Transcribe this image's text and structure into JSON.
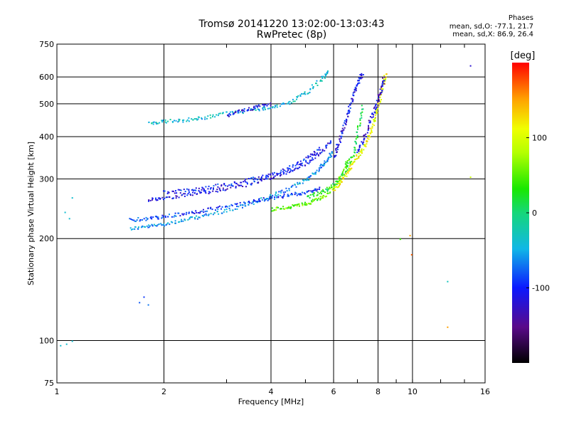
{
  "header": {
    "title": "Tromsø 20141220 13:02:00-13:03:43",
    "subtitle": "RwPretec (8p)"
  },
  "stats": {
    "heading": "Phases",
    "line1": "mean, sd,O: -77.1, 21.7",
    "line2": "mean, sd,X: 86.9, 26.4"
  },
  "colorbar": {
    "unit_label": "[deg]",
    "ticks": [
      100,
      0,
      -100
    ],
    "range": [
      -200,
      200
    ]
  },
  "chart_data": {
    "type": "scatter",
    "xlabel": "Frequency [MHz]",
    "ylabel": "Stationary phase Virtual Height [km]",
    "xscale": "log",
    "yscale": "log",
    "xlim": [
      1,
      16
    ],
    "ylim": [
      75,
      750
    ],
    "xticks": [
      1,
      2,
      4,
      6,
      8,
      10,
      16
    ],
    "yticks": [
      75,
      100,
      200,
      300,
      400,
      500,
      600,
      750
    ],
    "grid": true,
    "color_dimension": "phase [deg]",
    "traces": [
      {
        "freq": [
          1.6,
          1.8,
          2.0,
          2.3,
          2.6,
          3.0,
          3.5,
          4.0,
          4.5,
          5.0,
          5.4,
          5.7,
          5.95
        ],
        "height": [
          215,
          218,
          222,
          228,
          235,
          243,
          255,
          268,
          282,
          300,
          320,
          340,
          365
        ],
        "phase": -60
      },
      {
        "freq": [
          1.6,
          1.8,
          2.0,
          2.3,
          2.6,
          3.0,
          3.5,
          4.0,
          4.5,
          5.0,
          5.5
        ],
        "height": [
          228,
          230,
          233,
          238,
          243,
          250,
          258,
          265,
          270,
          275,
          282
        ],
        "phase": -90
      },
      {
        "freq": [
          1.8,
          2.0,
          2.3,
          2.6,
          3.0,
          3.5,
          4.0,
          4.5,
          5.0,
          5.5,
          5.9
        ],
        "height": [
          262,
          265,
          270,
          275,
          282,
          292,
          305,
          318,
          335,
          360,
          390
        ],
        "phase": -110
      },
      {
        "freq": [
          2.0,
          2.3,
          2.6,
          3.0,
          3.5,
          4.0,
          4.5,
          5.0,
          5.5
        ],
        "height": [
          275,
          278,
          283,
          290,
          300,
          310,
          325,
          345,
          372
        ],
        "phase": -100
      },
      {
        "freq": [
          4.0,
          4.4,
          4.8,
          5.2,
          5.6,
          6.0,
          6.3,
          6.6
        ],
        "height": [
          245,
          248,
          252,
          258,
          268,
          285,
          310,
          350
        ],
        "phase": 50
      },
      {
        "freq": [
          5.0,
          5.5,
          6.0,
          6.5,
          6.8,
          7.0,
          7.2
        ],
        "height": [
          265,
          275,
          290,
          320,
          360,
          420,
          500
        ],
        "phase": 20
      },
      {
        "freq": [
          6.0,
          6.3,
          6.6,
          6.9,
          7.2,
          7.5,
          7.8,
          8.0,
          8.2,
          8.4
        ],
        "height": [
          280,
          300,
          320,
          345,
          370,
          400,
          450,
          500,
          560,
          620
        ],
        "phase": 110
      },
      {
        "freq": [
          6.0,
          6.2,
          6.4,
          6.6,
          6.8,
          7.0,
          7.2
        ],
        "height": [
          350,
          390,
          430,
          480,
          530,
          580,
          620
        ],
        "phase": -110
      },
      {
        "freq": [
          7.0,
          7.3,
          7.6,
          7.9,
          8.1,
          8.3
        ],
        "height": [
          360,
          400,
          450,
          500,
          550,
          600
        ],
        "phase": -120
      },
      {
        "freq": [
          1.8,
          2.0,
          2.3,
          2.6,
          3.0,
          3.5,
          4.0,
          4.5,
          5.0,
          5.5,
          5.8
        ],
        "height": [
          440,
          445,
          450,
          458,
          470,
          480,
          490,
          505,
          540,
          590,
          630
        ],
        "phase": -40
      },
      {
        "freq": [
          3.0,
          3.3,
          3.6,
          4.0
        ],
        "height": [
          465,
          478,
          490,
          500
        ],
        "phase": -110
      }
    ],
    "isolated_points": [
      {
        "freq": 1.02,
        "height": 97,
        "phase": -40
      },
      {
        "freq": 1.06,
        "height": 98,
        "phase": -40
      },
      {
        "freq": 1.1,
        "height": 100,
        "phase": -40
      },
      {
        "freq": 1.05,
        "height": 240,
        "phase": -40
      },
      {
        "freq": 1.08,
        "height": 230,
        "phase": -40
      },
      {
        "freq": 1.1,
        "height": 265,
        "phase": -40
      },
      {
        "freq": 1.7,
        "height": 130,
        "phase": -80
      },
      {
        "freq": 1.75,
        "height": 135,
        "phase": -90
      },
      {
        "freq": 1.8,
        "height": 128,
        "phase": -70
      },
      {
        "freq": 9.2,
        "height": 200,
        "phase": 40
      },
      {
        "freq": 9.8,
        "height": 205,
        "phase": 150
      },
      {
        "freq": 9.9,
        "height": 180,
        "phase": 170
      },
      {
        "freq": 12.5,
        "height": 110,
        "phase": 150
      },
      {
        "freq": 12.5,
        "height": 150,
        "phase": -30
      },
      {
        "freq": 14.5,
        "height": 650,
        "phase": -120
      },
      {
        "freq": 14.5,
        "height": 305,
        "phase": 90
      }
    ]
  }
}
